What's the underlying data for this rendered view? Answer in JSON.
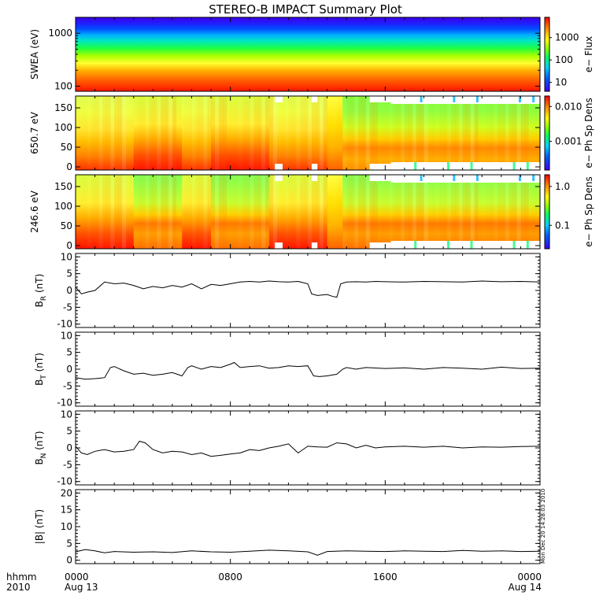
{
  "title": "STEREO-B IMPACT Summary Plot",
  "colors": {
    "axis": "#000000",
    "trace": "#000000",
    "background": "#ffffff"
  },
  "x_axis": {
    "row1_label": "hhmm",
    "row2_label": "2010",
    "ticks": [
      {
        "label": "0000",
        "sub": "Aug 13",
        "t": 0
      },
      {
        "label": "0800",
        "sub": "",
        "t": 8
      },
      {
        "label": "1600",
        "sub": "",
        "t": 16
      },
      {
        "label": "0000",
        "sub": "Aug 14",
        "t": 24
      }
    ],
    "range_hours": [
      0,
      24
    ]
  },
  "timestamp_note": "Mon Dec 20 14:28:03 2010",
  "chart_data": [
    {
      "type": "heatmap",
      "panel": "swea",
      "ylabel": "SWEA (eV)",
      "yscale": "log",
      "ylim": [
        80,
        2000
      ],
      "yticks": [
        {
          "v": 100,
          "label": "100"
        },
        {
          "v": 1000,
          "label": "1000"
        }
      ],
      "colorbar": {
        "label": "e− Flux",
        "scale": "log",
        "range": [
          4,
          8000
        ],
        "ticks": [
          {
            "v": 10,
            "label": "10"
          },
          {
            "v": 100,
            "label": "100"
          },
          {
            "v": 1000,
            "label": "1000"
          }
        ]
      }
    },
    {
      "type": "heatmap",
      "panel": "pad650",
      "ylabel": "650.7 eV",
      "ylim": [
        -8,
        180
      ],
      "yticks": [
        {
          "v": 0,
          "label": "0"
        },
        {
          "v": 50,
          "label": "50"
        },
        {
          "v": 100,
          "label": "100"
        },
        {
          "v": 150,
          "label": "150"
        }
      ],
      "colorbar": {
        "label": "e− Ph Sp Dens",
        "scale": "log",
        "range": [
          0.00015,
          0.02
        ],
        "ticks": [
          {
            "v": 0.001,
            "label": "0.001"
          },
          {
            "v": 0.01,
            "label": "0.010"
          }
        ]
      }
    },
    {
      "type": "heatmap",
      "panel": "pad246",
      "ylabel": "246.6 eV",
      "ylim": [
        -8,
        180
      ],
      "yticks": [
        {
          "v": 0,
          "label": "0"
        },
        {
          "v": 50,
          "label": "50"
        },
        {
          "v": 100,
          "label": "100"
        },
        {
          "v": 150,
          "label": "150"
        }
      ],
      "colorbar": {
        "label": "e− Ph Sp Dens",
        "scale": "log",
        "range": [
          0.025,
          2.0
        ],
        "ticks": [
          {
            "v": 0.1,
            "label": "0.1"
          },
          {
            "v": 1.0,
            "label": "1.0"
          }
        ]
      }
    },
    {
      "type": "line",
      "panel": "br",
      "ylabel_main": "B",
      "ylabel_sub": "R",
      "ylabel_tail": " (nT)",
      "ylim": [
        -11,
        11
      ],
      "yticks": [
        -10,
        -5,
        0,
        5,
        10
      ],
      "x": [
        0,
        0.3,
        0.6,
        1.0,
        1.5,
        2.0,
        2.5,
        3.0,
        3.5,
        4.0,
        4.5,
        5.0,
        5.5,
        6.0,
        6.5,
        7.0,
        7.5,
        8.0,
        8.5,
        9.0,
        9.5,
        10.0,
        10.5,
        11.0,
        11.5,
        12.0,
        12.2,
        12.5,
        13.0,
        13.3,
        13.5,
        13.7,
        14.0,
        14.5,
        15.0,
        15.5,
        16.0,
        17.0,
        18.0,
        19.0,
        20.0,
        21.0,
        22.0,
        23.0,
        24.0
      ],
      "y": [
        1.0,
        -1.0,
        -0.5,
        0.0,
        2.5,
        2.0,
        2.2,
        1.5,
        0.5,
        1.2,
        0.8,
        1.5,
        1.0,
        2.0,
        0.5,
        1.8,
        1.5,
        2.0,
        2.5,
        2.7,
        2.5,
        2.8,
        2.6,
        2.5,
        2.7,
        2.0,
        -1.0,
        -1.5,
        -1.2,
        -1.8,
        -2.0,
        2.0,
        2.5,
        2.6,
        2.5,
        2.7,
        2.6,
        2.5,
        2.7,
        2.6,
        2.5,
        2.8,
        2.6,
        2.7,
        2.5
      ]
    },
    {
      "type": "line",
      "panel": "bt",
      "ylabel_main": "B",
      "ylabel_sub": "T",
      "ylabel_tail": " (nT)",
      "ylim": [
        -11,
        11
      ],
      "yticks": [
        -10,
        -5,
        0,
        5,
        10
      ],
      "x": [
        0,
        0.5,
        1.0,
        1.5,
        1.8,
        2.0,
        2.5,
        3.0,
        3.5,
        4.0,
        4.5,
        5.0,
        5.5,
        5.8,
        6.0,
        6.5,
        7.0,
        7.5,
        8.0,
        8.2,
        8.5,
        9.0,
        9.5,
        10.0,
        10.5,
        11.0,
        11.5,
        12.0,
        12.3,
        12.6,
        13.0,
        13.5,
        13.8,
        14.0,
        14.5,
        15.0,
        16.0,
        17.0,
        18.0,
        19.0,
        20.0,
        21.0,
        22.0,
        23.0,
        24.0
      ],
      "y": [
        -2.5,
        -3.0,
        -2.8,
        -2.5,
        0.5,
        0.8,
        -0.5,
        -1.5,
        -1.2,
        -1.8,
        -1.5,
        -1.0,
        -2.0,
        0.5,
        1.0,
        0.0,
        0.8,
        0.5,
        1.5,
        2.0,
        0.5,
        0.8,
        1.0,
        0.3,
        0.5,
        1.0,
        0.8,
        1.0,
        -2.0,
        -2.2,
        -2.0,
        -1.5,
        0.0,
        0.5,
        0.0,
        0.5,
        0.2,
        0.4,
        0.0,
        0.5,
        0.3,
        0.0,
        0.6,
        0.2,
        0.3
      ]
    },
    {
      "type": "line",
      "panel": "bn",
      "ylabel_main": "B",
      "ylabel_sub": "N",
      "ylabel_tail": " (nT)",
      "ylim": [
        -11,
        11
      ],
      "yticks": [
        -10,
        -5,
        0,
        5,
        10
      ],
      "x": [
        0,
        0.3,
        0.6,
        1.0,
        1.5,
        2.0,
        2.5,
        3.0,
        3.3,
        3.6,
        4.0,
        4.5,
        5.0,
        5.5,
        6.0,
        6.5,
        7.0,
        7.5,
        8.0,
        8.5,
        9.0,
        9.5,
        10.0,
        10.5,
        11.0,
        11.5,
        12.0,
        12.5,
        13.0,
        13.5,
        14.0,
        14.5,
        15.0,
        15.5,
        16.0,
        17.0,
        18.0,
        19.0,
        20.0,
        21.0,
        22.0,
        23.0,
        24.0
      ],
      "y": [
        0.5,
        -1.5,
        -2.0,
        -1.0,
        -0.5,
        -1.2,
        -1.0,
        -0.5,
        2.0,
        1.5,
        -0.5,
        -1.5,
        -1.0,
        -1.2,
        -2.0,
        -1.5,
        -2.5,
        -2.2,
        -1.8,
        -1.5,
        -0.5,
        -0.8,
        0.0,
        0.5,
        1.2,
        -1.5,
        0.5,
        0.3,
        0.2,
        1.5,
        1.2,
        0.0,
        0.8,
        0.0,
        0.3,
        0.5,
        0.2,
        0.5,
        0.0,
        0.3,
        0.2,
        0.4,
        0.5
      ]
    },
    {
      "type": "line",
      "panel": "bmag",
      "ylabel_main": "|B|",
      "ylabel_sub": "",
      "ylabel_tail": " (nT)",
      "ylim": [
        -1,
        21
      ],
      "yticks": [
        0,
        5,
        10,
        15,
        20
      ],
      "x": [
        0,
        0.5,
        1.0,
        1.5,
        2.0,
        3.0,
        4.0,
        5.0,
        6.0,
        7.0,
        8.0,
        9.0,
        10.0,
        11.0,
        12.0,
        12.5,
        13.0,
        14.0,
        15.0,
        16.0,
        17.0,
        18.0,
        19.0,
        20.0,
        21.0,
        22.0,
        23.0,
        24.0
      ],
      "y": [
        2.5,
        3.2,
        2.8,
        2.2,
        2.6,
        2.4,
        2.5,
        2.3,
        2.8,
        2.5,
        2.4,
        2.7,
        3.0,
        2.8,
        2.5,
        1.5,
        2.6,
        2.8,
        2.7,
        2.6,
        2.8,
        2.7,
        2.6,
        2.9,
        2.7,
        2.8,
        2.6,
        2.7
      ]
    }
  ]
}
